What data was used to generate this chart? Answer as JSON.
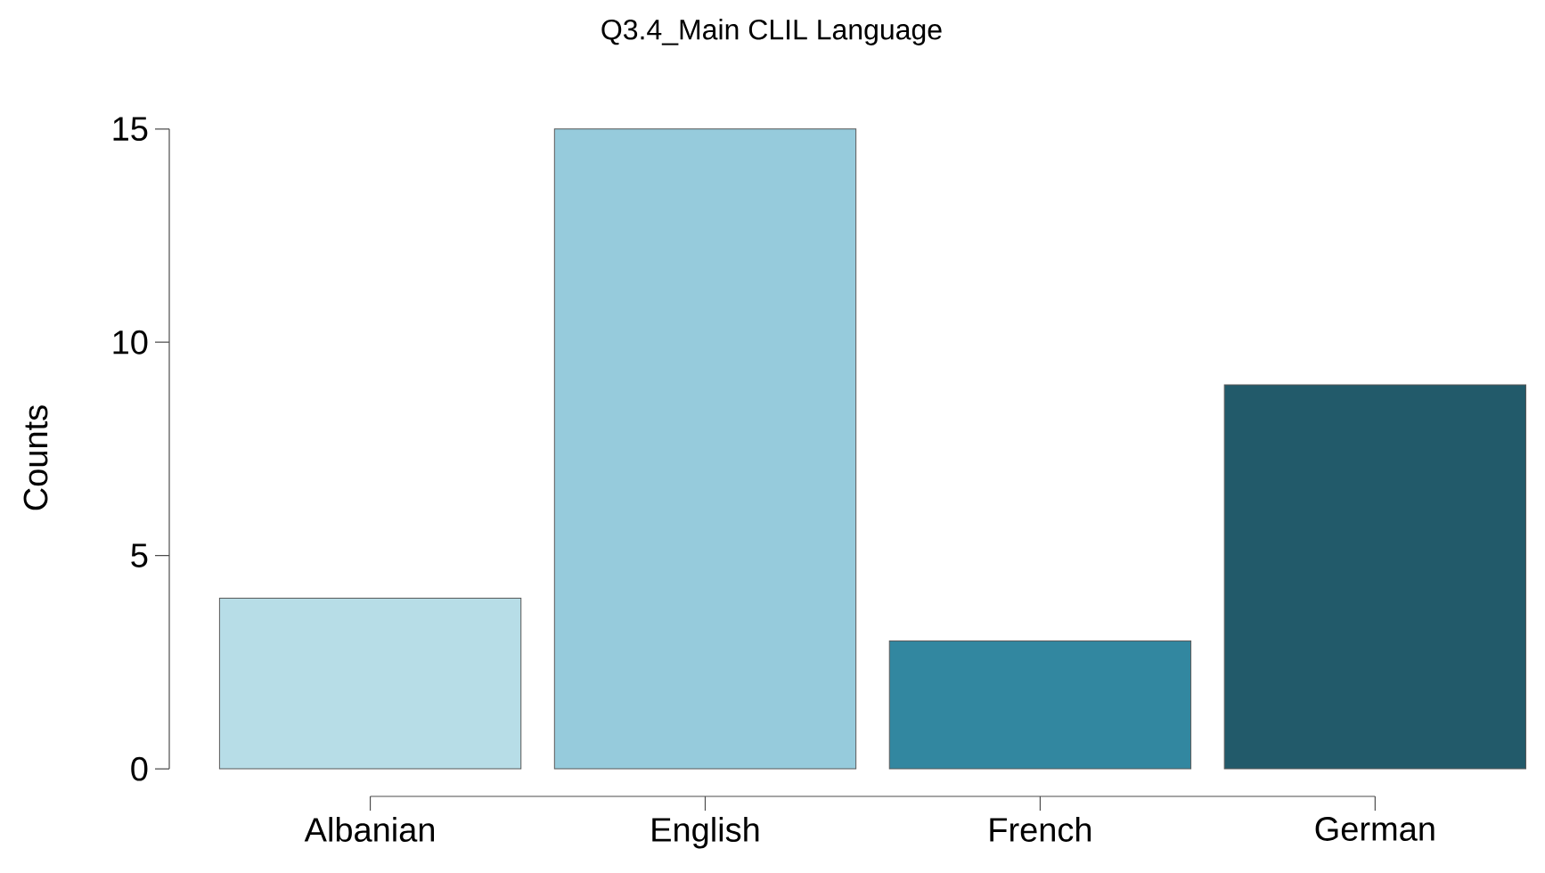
{
  "chart_data": {
    "type": "bar",
    "title": "Q3.4_Main CLIL Language",
    "ylabel": "Counts",
    "categories": [
      "Albanian",
      "English",
      "French",
      "German"
    ],
    "values": [
      4,
      15,
      3,
      9
    ],
    "colors": [
      "#b7dde7",
      "#96cbdc",
      "#3287a0",
      "#225a6a"
    ],
    "ylim": [
      0,
      15
    ],
    "yticks": [
      0,
      5,
      10,
      15
    ],
    "grid": false
  }
}
